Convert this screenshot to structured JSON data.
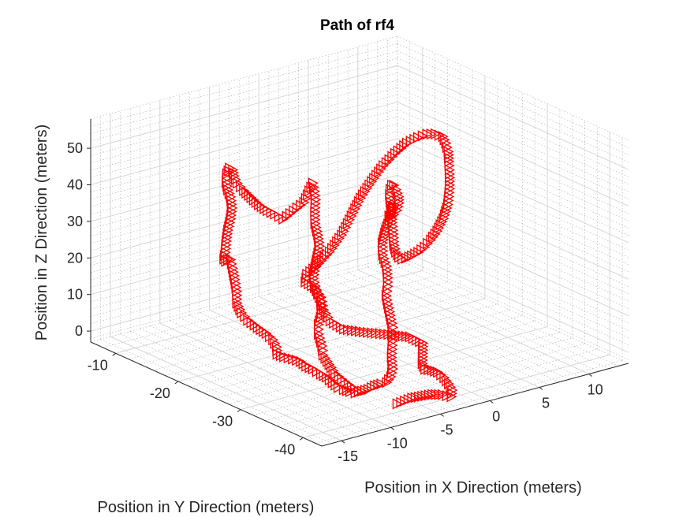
{
  "chart_data": {
    "type": "scatter3d",
    "title": "Path of rf4",
    "xlabel": "Position in X Direction (meters)",
    "ylabel": "Position in Y Direction (meters)",
    "zlabel": "Position in Z Direction (meters)",
    "xlim": [
      -17,
      14
    ],
    "ylim": [
      -43,
      -6
    ],
    "zlim": [
      -3,
      58
    ],
    "xticks": [
      -15,
      -10,
      -5,
      0,
      5,
      10
    ],
    "yticks": [
      -40,
      -30,
      -20,
      -10
    ],
    "zticks": [
      0,
      10,
      20,
      30,
      40,
      50
    ],
    "grid": true,
    "marker": "right-triangle",
    "series": [
      {
        "name": "rf4",
        "color": "#ff0000",
        "points": [
          [
            -8,
            -34,
            -1
          ],
          [
            -8.6,
            -33.4,
            1
          ],
          [
            -9.1,
            -32.6,
            3
          ],
          [
            -9.2,
            -31.8,
            5
          ],
          [
            -9.3,
            -31,
            7
          ],
          [
            -9.1,
            -30.5,
            9
          ],
          [
            -9.2,
            -30.1,
            12
          ],
          [
            -9.4,
            -30.4,
            15
          ],
          [
            -9.2,
            -30.6,
            18
          ],
          [
            -9.1,
            -30.3,
            21
          ],
          [
            -9.3,
            -29.9,
            24
          ],
          [
            -9.4,
            -29.6,
            27
          ],
          [
            -9.3,
            -29.7,
            30
          ],
          [
            -9.2,
            -29.9,
            33
          ],
          [
            -9.1,
            -30.1,
            36
          ],
          [
            -9.2,
            -30,
            39
          ],
          [
            -9.3,
            -29.7,
            42
          ],
          [
            -9.2,
            -29.5,
            45
          ],
          [
            -9,
            -29.3,
            48
          ],
          [
            -8.9,
            -29,
            50
          ],
          [
            -8.9,
            -28.7,
            52
          ],
          [
            -9.2,
            -28.6,
            50
          ],
          [
            -9.6,
            -28.4,
            47
          ],
          [
            -10.4,
            -28,
            45
          ],
          [
            -11.2,
            -27.6,
            43
          ],
          [
            -11.8,
            -27.2,
            44.5
          ],
          [
            -12.3,
            -26.8,
            45.5
          ],
          [
            -12.8,
            -26.2,
            47
          ],
          [
            -13.3,
            -25.8,
            49
          ],
          [
            -13.8,
            -25.4,
            51
          ],
          [
            -14.2,
            -25,
            53
          ],
          [
            -14.4,
            -24.8,
            55
          ],
          [
            -14.4,
            -24.6,
            56.5
          ],
          [
            -14.6,
            -24.4,
            57
          ],
          [
            -14.8,
            -24.3,
            55.5
          ],
          [
            -14.8,
            -24.2,
            53
          ],
          [
            -14.7,
            -24.3,
            51
          ],
          [
            -14.5,
            -24.4,
            49
          ],
          [
            -14.4,
            -24.5,
            46
          ],
          [
            -14.5,
            -24.4,
            43
          ],
          [
            -14.7,
            -24.3,
            40
          ],
          [
            -14.8,
            -24.2,
            37
          ],
          [
            -14.9,
            -24.2,
            34
          ],
          [
            -14.9,
            -24,
            32
          ],
          [
            -14.6,
            -23.8,
            31
          ],
          [
            -14.2,
            -23.5,
            31
          ],
          [
            -13.8,
            -23.3,
            30.5
          ],
          [
            -13.6,
            -23.3,
            28
          ],
          [
            -13.5,
            -23.5,
            25
          ],
          [
            -13.5,
            -23.8,
            22
          ],
          [
            -13.6,
            -24,
            19
          ],
          [
            -13.4,
            -24.4,
            16.5
          ],
          [
            -13,
            -24.8,
            14.5
          ],
          [
            -12.4,
            -25.4,
            12.5
          ],
          [
            -11.9,
            -26,
            11
          ],
          [
            -11.6,
            -26.6,
            9.5
          ],
          [
            -11.6,
            -27.2,
            8
          ],
          [
            -11.8,
            -27.6,
            6.5
          ],
          [
            -11.5,
            -28.2,
            6
          ],
          [
            -11,
            -28.8,
            5.5
          ],
          [
            -10.6,
            -29.4,
            5
          ],
          [
            -10.4,
            -30,
            4
          ],
          [
            -10.1,
            -30.6,
            3.5
          ],
          [
            -9.8,
            -31.4,
            2.5
          ],
          [
            -9.6,
            -32,
            2
          ],
          [
            -9.5,
            -32.8,
            1
          ],
          [
            -9.3,
            -33.4,
            0
          ],
          [
            -9,
            -33.8,
            -0.5
          ],
          [
            -8.6,
            -34.2,
            -1
          ],
          [
            -8.2,
            -34.4,
            -1.5
          ],
          [
            -7.8,
            -34.8,
            -1
          ],
          [
            -7.4,
            -35.2,
            -0.5
          ],
          [
            -7,
            -35.6,
            0.5
          ],
          [
            -6.6,
            -36,
            1
          ],
          [
            -6.3,
            -36.4,
            1.5
          ],
          [
            -6,
            -36.6,
            3
          ],
          [
            -5.8,
            -36.6,
            5
          ],
          [
            -5.8,
            -36.4,
            8
          ],
          [
            -5.6,
            -36.2,
            11
          ],
          [
            -5.4,
            -36,
            13
          ],
          [
            -5.3,
            -35.8,
            14
          ],
          [
            -5.1,
            -35.5,
            15
          ],
          [
            -5.1,
            -35.2,
            17
          ],
          [
            -5.2,
            -35,
            20
          ],
          [
            -5.2,
            -34.6,
            23
          ],
          [
            -4.8,
            -34.2,
            25
          ],
          [
            -4.6,
            -33.9,
            27
          ],
          [
            -4.6,
            -33.7,
            30
          ],
          [
            -4.8,
            -33.4,
            33
          ],
          [
            -4.7,
            -33.2,
            36
          ],
          [
            -4.2,
            -32.8,
            38
          ],
          [
            -3.7,
            -32.3,
            39
          ],
          [
            -3,
            -31.6,
            39.5
          ],
          [
            -2.3,
            -30.8,
            40.5
          ],
          [
            -1.6,
            -30,
            41
          ],
          [
            -1.1,
            -29.3,
            40.5
          ],
          [
            -0.9,
            -28.8,
            39.5
          ],
          [
            -1,
            -28.4,
            37
          ],
          [
            -0.6,
            -27.9,
            36
          ],
          [
            -0.2,
            -27.5,
            35.5
          ],
          [
            0.3,
            -27.1,
            35.5
          ],
          [
            0.8,
            -26.8,
            36
          ],
          [
            1.2,
            -26.5,
            37.5
          ],
          [
            1.3,
            -26.3,
            39
          ],
          [
            1.1,
            -26.2,
            41
          ],
          [
            0.8,
            -26.3,
            42.5
          ],
          [
            0.4,
            -26.6,
            43
          ],
          [
            0,
            -27,
            42.5
          ],
          [
            -0.3,
            -27.4,
            41.5
          ],
          [
            -0.5,
            -27.8,
            40
          ],
          [
            -0.6,
            -28.2,
            37.5
          ],
          [
            -0.7,
            -28.4,
            35
          ],
          [
            -0.7,
            -28.6,
            32
          ],
          [
            -0.7,
            -28.7,
            29
          ],
          [
            -0.5,
            -28.7,
            27
          ],
          [
            0,
            -28.4,
            25
          ],
          [
            0.7,
            -27.8,
            23.5
          ],
          [
            1.6,
            -27,
            22.5
          ],
          [
            2.8,
            -26,
            21.5
          ],
          [
            4.2,
            -24.8,
            20.5
          ],
          [
            5.6,
            -23.6,
            20
          ],
          [
            7,
            -22.4,
            20
          ],
          [
            8.4,
            -21.2,
            20.5
          ],
          [
            9.8,
            -20,
            22
          ],
          [
            11,
            -18.8,
            24
          ],
          [
            11.8,
            -17.8,
            27
          ],
          [
            12.3,
            -17,
            30
          ],
          [
            12.5,
            -16.6,
            33
          ],
          [
            12.3,
            -16.8,
            36
          ],
          [
            11.8,
            -17.2,
            39
          ],
          [
            11,
            -18,
            42
          ],
          [
            9.6,
            -19,
            44.5
          ],
          [
            8,
            -20.2,
            46.5
          ],
          [
            6.2,
            -21.6,
            48
          ],
          [
            4.2,
            -23,
            49
          ],
          [
            2,
            -24.6,
            49
          ],
          [
            -0.2,
            -26.2,
            48.5
          ],
          [
            -2.4,
            -27.8,
            47
          ],
          [
            -4.4,
            -29.2,
            45
          ],
          [
            -6.2,
            -30.6,
            42.5
          ],
          [
            -8.2,
            -32.2,
            40
          ],
          [
            -10.3,
            -33.6,
            38
          ],
          [
            -12.4,
            -34.8,
            36.5
          ],
          [
            -13.6,
            -35.2,
            35.5
          ],
          [
            -14,
            -35.6,
            34
          ],
          [
            -13.2,
            -35.8,
            32
          ],
          [
            -12.6,
            -35.9,
            29
          ],
          [
            -12.4,
            -36,
            25.5
          ],
          [
            -12,
            -36.4,
            22.5
          ],
          [
            -11,
            -37,
            20
          ],
          [
            -9.4,
            -37.6,
            18.5
          ],
          [
            -7.4,
            -38.4,
            17
          ],
          [
            -5.6,
            -39,
            15.5
          ],
          [
            -4.4,
            -39.2,
            13
          ],
          [
            -4.3,
            -39,
            10
          ],
          [
            -4.2,
            -38.8,
            7
          ],
          [
            -3.8,
            -38.6,
            5
          ],
          [
            -3,
            -38.4,
            4
          ],
          [
            -2.4,
            -38.4,
            3
          ],
          [
            -2,
            -38.8,
            1.5
          ],
          [
            -1.8,
            -39.2,
            0
          ],
          [
            -1.7,
            -39.6,
            -1.5
          ],
          [
            -1.9,
            -39.8,
            -3
          ],
          [
            -3.2,
            -40.4,
            -1
          ],
          [
            -4.6,
            -41,
            0.5
          ],
          [
            -6,
            -41.6,
            1.5
          ],
          [
            -7.4,
            -42.2,
            2.5
          ],
          [
            -9.4,
            -43,
            3
          ]
        ]
      }
    ]
  }
}
